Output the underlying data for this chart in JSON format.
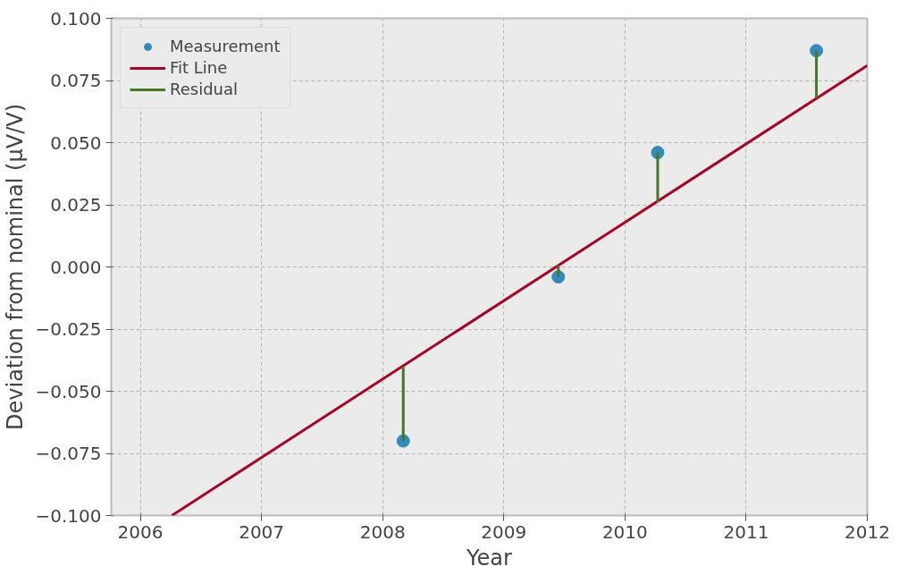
{
  "chart_data": {
    "type": "scatter",
    "xlabel": "Year",
    "ylabel": "Deviation from nominal (µV/V)",
    "xlim": [
      2005.76,
      2012
    ],
    "ylim": [
      -0.1,
      0.1
    ],
    "xticks": [
      2006,
      2007,
      2008,
      2009,
      2010,
      2011,
      2012
    ],
    "yticks": [
      {
        "value": -0.1,
        "label": "−0.100"
      },
      {
        "value": -0.075,
        "label": "−0.075"
      },
      {
        "value": -0.05,
        "label": "−0.050"
      },
      {
        "value": -0.025,
        "label": "−0.025"
      },
      {
        "value": 0,
        "label": "0.000"
      },
      {
        "value": 0.025,
        "label": "0.025"
      },
      {
        "value": 0.05,
        "label": "0.050"
      },
      {
        "value": 0.075,
        "label": "0.075"
      },
      {
        "value": 0.1,
        "label": "0.100"
      }
    ],
    "grid": true,
    "legend": "top left",
    "series": [
      {
        "name": "Measurement",
        "color": "#348abd",
        "marker": "circle",
        "x": [
          2008.17,
          2009.45,
          2010.27,
          2011.58
        ],
        "values": [
          -0.07,
          -0.004,
          0.046,
          0.087
        ]
      },
      {
        "name": "Fit Line",
        "type": "line",
        "color": "#a60628",
        "x": [
          2006.26,
          2012
        ],
        "values": [
          -0.1,
          0.081
        ]
      },
      {
        "name": "Residual",
        "type": "line",
        "color": "#467821",
        "x": [
          2008.17,
          2008.17,
          null,
          2009.45,
          2009.45,
          null,
          2010.27,
          2010.27,
          null,
          2011.58,
          2011.58
        ],
        "values": [
          -0.07,
          -0.04,
          null,
          -0.004,
          0.0006,
          null,
          0.046,
          0.026,
          null,
          0.087,
          0.068
        ]
      }
    ]
  }
}
